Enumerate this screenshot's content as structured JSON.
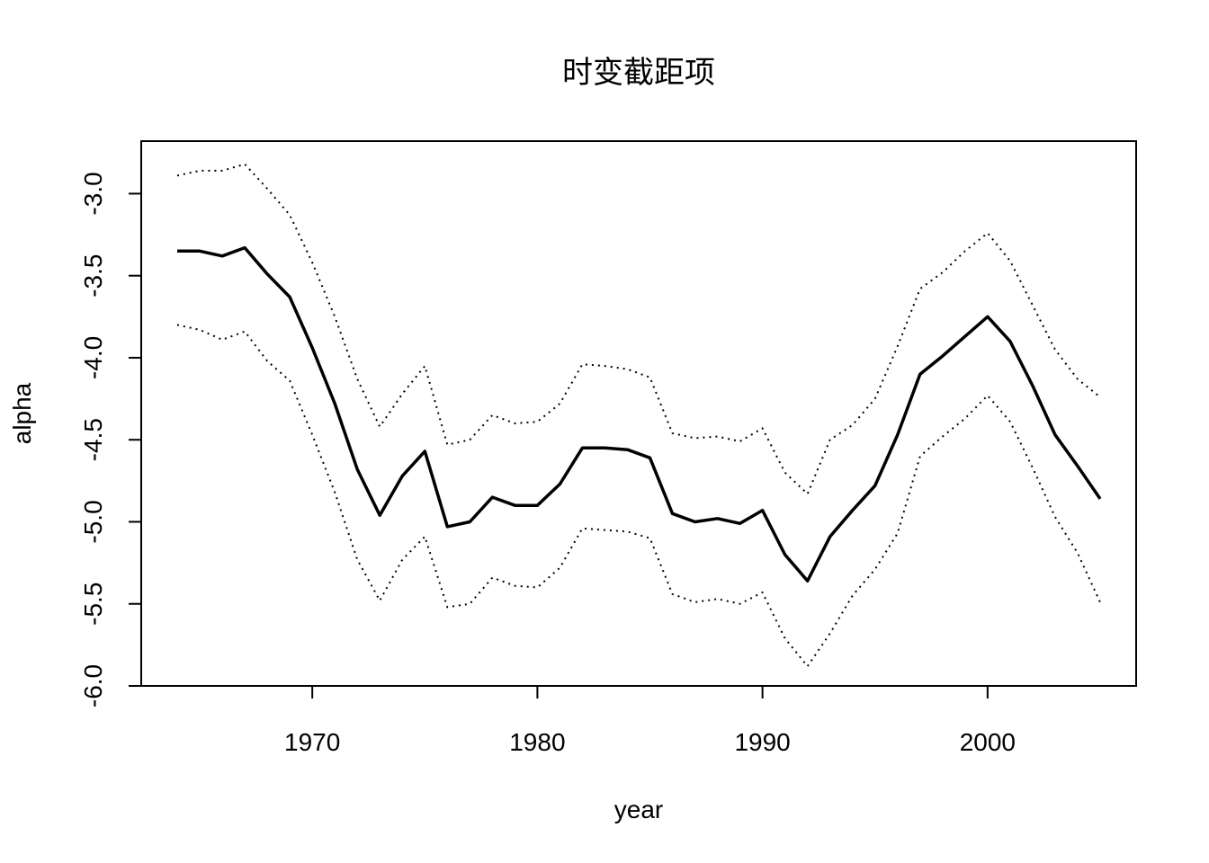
{
  "chart_data": {
    "type": "line",
    "title": "时变截距项",
    "xlabel": "year",
    "ylabel": "alpha",
    "xlim": [
      1962.4,
      2006.6
    ],
    "ylim": [
      -6.0,
      -2.68
    ],
    "x_ticks": [
      1970,
      1980,
      1990,
      2000
    ],
    "y_ticks": [
      -3.0,
      -3.5,
      -4.0,
      -4.5,
      -5.0,
      -5.5,
      -6.0
    ],
    "x_tick_labels": [
      "1970",
      "1980",
      "1990",
      "2000"
    ],
    "y_tick_labels": [
      "-3.0",
      "-3.5",
      "-4.0",
      "-4.5",
      "-5.0",
      "-5.5",
      "-6.0"
    ],
    "grid": false,
    "legend": "none",
    "x": [
      1964,
      1965,
      1966,
      1967,
      1968,
      1969,
      1970,
      1971,
      1972,
      1973,
      1974,
      1975,
      1976,
      1977,
      1978,
      1979,
      1980,
      1981,
      1982,
      1983,
      1984,
      1985,
      1986,
      1987,
      1988,
      1989,
      1990,
      1991,
      1992,
      1993,
      1994,
      1995,
      1996,
      1997,
      1998,
      1999,
      2000,
      2001,
      2002,
      2003,
      2004,
      2005
    ],
    "series": [
      {
        "style": "solid",
        "color": "#000000",
        "values": [
          -3.35,
          -3.35,
          -3.38,
          -3.33,
          -3.49,
          -3.63,
          -3.94,
          -4.28,
          -4.68,
          -4.96,
          -4.72,
          -4.57,
          -5.03,
          -5.0,
          -4.85,
          -4.9,
          -4.9,
          -4.77,
          -4.55,
          -4.55,
          -4.56,
          -4.61,
          -4.95,
          -5.0,
          -4.98,
          -5.01,
          -4.93,
          -5.2,
          -5.36,
          -5.09,
          -4.93,
          -4.78,
          -4.47,
          -4.1,
          -3.99,
          -3.87,
          -3.75,
          -3.9,
          -4.17,
          -4.47,
          -4.66,
          -4.86
        ]
      },
      {
        "style": "dotted",
        "color": "#000000",
        "values": [
          -2.89,
          -2.86,
          -2.86,
          -2.82,
          -2.97,
          -3.13,
          -3.42,
          -3.75,
          -4.13,
          -4.42,
          -4.22,
          -4.05,
          -4.53,
          -4.5,
          -4.35,
          -4.4,
          -4.39,
          -4.28,
          -4.04,
          -4.05,
          -4.07,
          -4.12,
          -4.46,
          -4.49,
          -4.48,
          -4.51,
          -4.43,
          -4.7,
          -4.83,
          -4.5,
          -4.41,
          -4.25,
          -3.93,
          -3.58,
          -3.48,
          -3.35,
          -3.24,
          -3.41,
          -3.68,
          -3.95,
          -4.13,
          -4.24
        ]
      },
      {
        "style": "dotted",
        "color": "#000000",
        "values": [
          -3.8,
          -3.83,
          -3.89,
          -3.84,
          -4.02,
          -4.14,
          -4.47,
          -4.82,
          -5.23,
          -5.48,
          -5.23,
          -5.09,
          -5.52,
          -5.5,
          -5.34,
          -5.39,
          -5.4,
          -5.28,
          -5.04,
          -5.05,
          -5.06,
          -5.1,
          -5.44,
          -5.49,
          -5.47,
          -5.5,
          -5.43,
          -5.71,
          -5.88,
          -5.68,
          -5.45,
          -5.29,
          -5.07,
          -4.6,
          -4.48,
          -4.37,
          -4.23,
          -4.39,
          -4.67,
          -4.97,
          -5.19,
          -5.49
        ]
      }
    ]
  }
}
